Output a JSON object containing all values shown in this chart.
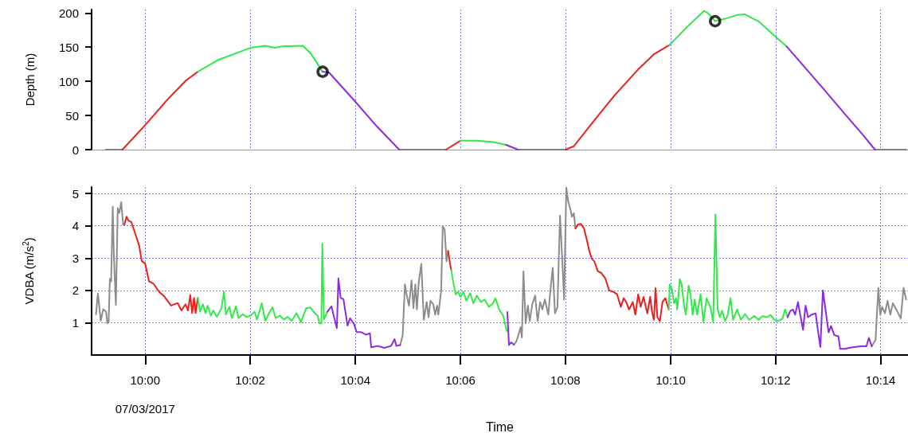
{
  "chart_data": [
    {
      "type": "line",
      "ylabel": "Depth (m)",
      "xlim": [
        9.983,
        10.242
      ],
      "ylim": [
        0,
        205
      ],
      "yticks": [
        0,
        50,
        100,
        150,
        200
      ],
      "xticks": [
        {
          "value": 10,
          "label": null
        },
        {
          "value": 10.0333,
          "label": null
        },
        {
          "value": 10.0667,
          "label": null
        },
        {
          "value": 10.1,
          "label": null
        },
        {
          "value": 10.1333,
          "label": null
        },
        {
          "value": 10.1667,
          "label": null
        },
        {
          "value": 10.2,
          "label": null
        },
        {
          "value": 10.2333,
          "label": null
        }
      ],
      "tick_labels": "y",
      "grid": "x",
      "marker": "none",
      "series": [
        {
          "color": "#808080",
          "x": [
            9.9875,
            9.9928
          ],
          "values": [
            0,
            0
          ]
        },
        {
          "color": "#808080",
          "x": [
            10.0806,
            10.0954
          ],
          "values": [
            0,
            0
          ]
        },
        {
          "color": "#808080",
          "x": [
            10.1183,
            10.1333
          ],
          "values": [
            0,
            0
          ]
        },
        {
          "color": "#808080",
          "x": [
            10.2315,
            10.2415
          ],
          "values": [
            0,
            0
          ]
        },
        {
          "color": "#e8211f",
          "x": [
            9.9928,
            10.0,
            10.007,
            10.0129,
            10.0167
          ],
          "values": [
            0,
            36,
            73,
            101,
            114
          ]
        },
        {
          "color": "#e8211f",
          "x": [
            10.0954,
            10.1
          ],
          "values": [
            0,
            13
          ]
        },
        {
          "color": "#e8211f",
          "x": [
            10.1333,
            10.136,
            10.142,
            10.149,
            10.1563,
            10.1615,
            10.1663
          ],
          "values": [
            0,
            5,
            40,
            80,
            117,
            140,
            153
          ]
        },
        {
          "color": "#33e84a",
          "x": [
            10.0167,
            10.023,
            10.0334,
            10.0381,
            10.041,
            10.0433,
            10.05,
            10.0525,
            10.0563
          ],
          "values": [
            114,
            131,
            149,
            152,
            149,
            151,
            152,
            141,
            114
          ]
        },
        {
          "color": "#33e84a",
          "x": [
            10.1,
            10.1053,
            10.1105,
            10.1145
          ],
          "values": [
            13,
            13,
            11,
            7
          ]
        },
        {
          "color": "#33e84a",
          "x": [
            10.1663,
            10.172,
            10.1773,
            10.1785,
            10.1808,
            10.1843,
            10.1878,
            10.1903,
            10.1948,
            10.2,
            10.2035
          ],
          "values": [
            153,
            180,
            203,
            200,
            188,
            192,
            197,
            198,
            187,
            165,
            151
          ]
        },
        {
          "color": "#8a2be2",
          "x": [
            10.0563,
            10.0583,
            10.0665,
            10.0735,
            10.0806
          ],
          "values": [
            114,
            113,
            71,
            34,
            0
          ]
        },
        {
          "color": "#8a2be2",
          "x": [
            10.1145,
            10.1183
          ],
          "values": [
            7,
            0
          ]
        },
        {
          "color": "#8a2be2",
          "x": [
            10.2035,
            10.2148,
            10.222,
            10.228,
            10.2315
          ],
          "values": [
            151,
            91,
            52,
            20,
            0
          ]
        },
        {
          "type": "scatter",
          "marker": "circle",
          "color": "#000000",
          "x": [
            10.0563,
            10.1808
          ],
          "values": [
            114,
            188
          ]
        }
      ]
    },
    {
      "type": "line",
      "ylabel": "VDBA (m/s$^{2}$)",
      "xlabel": "Time",
      "annotations": [
        "07/03/2017"
      ],
      "xlim": [
        9.983,
        10.242
      ],
      "ylim": [
        0,
        5.2
      ],
      "yticks": [
        1,
        2,
        3,
        4,
        5
      ],
      "xticks": [
        {
          "value": 10,
          "label": "10:00"
        },
        {
          "value": 10.0333,
          "label": "10:02"
        },
        {
          "value": 10.0667,
          "label": "10:04"
        },
        {
          "value": 10.1,
          "label": "10:06"
        },
        {
          "value": 10.1333,
          "label": "10:08"
        },
        {
          "value": 10.1667,
          "label": "10:10"
        },
        {
          "value": 10.2,
          "label": "10:12"
        },
        {
          "value": 10.2333,
          "label": "10:14"
        }
      ],
      "grid": true,
      "marker": "none",
      "series": [
        {
          "color": "#8c8c8c",
          "x": [
            9.9844,
            9.985,
            9.9859,
            9.9867,
            9.9876,
            9.988,
            9.9884,
            9.9888,
            9.9892,
            9.9897,
            9.9901,
            9.9907,
            9.9913,
            9.9918,
            9.9924,
            9.993,
            9.9934
          ],
          "values": [
            1.26,
            1.91,
            1.06,
            1.42,
            1.34,
            0.98,
            1.02,
            2.36,
            2.28,
            4.59,
            2.98,
            1.55,
            4.55,
            4.4,
            4.73,
            4.04,
            4.04
          ]
        },
        {
          "color": "#8c8c8c",
          "x": [
            10.0809,
            10.0817,
            10.0824,
            10.083,
            10.0837,
            10.0845,
            10.0851,
            10.0857,
            10.0862,
            10.0868,
            10.0876,
            10.0884,
            10.0893,
            10.0899,
            10.0905,
            10.0914,
            10.092,
            10.0926,
            10.093,
            10.0939,
            10.0944,
            10.095,
            10.0956,
            10.0961
          ],
          "values": [
            0.31,
            0.62,
            2.19,
            1.84,
            1.53,
            2.31,
            1.45,
            2.19,
            1.41,
            2.27,
            2.82,
            1.09,
            1.64,
            1.17,
            1.68,
            1.57,
            1.25,
            1.53,
            1.25,
            2.0,
            3.99,
            3.88,
            2.9,
            3.22
          ]
        },
        {
          "color": "#8c8c8c",
          "x": [
            10.117,
            10.1178,
            10.1184,
            10.1191,
            10.1195,
            10.12,
            10.1207,
            10.1214,
            10.122,
            10.1228,
            10.1237,
            10.1245,
            10.1253,
            10.126,
            10.1268,
            10.1279,
            10.1285,
            10.1293,
            10.13,
            10.1308,
            10.1316,
            10.1323,
            10.1329,
            10.1336,
            10.1342,
            10.1347,
            10.1354,
            10.136,
            10.1365
          ],
          "values": [
            0.32,
            0.43,
            0.62,
            0.86,
            0.54,
            2.59,
            0.98,
            1.53,
            1.05,
            1.57,
            1.84,
            1.05,
            1.64,
            1.41,
            1.72,
            1.25,
            1.96,
            2.7,
            1.29,
            1.49,
            4.32,
            2.98,
            1.72,
            5.18,
            4.75,
            4.59,
            4.28,
            4.39,
            3.92
          ]
        },
        {
          "color": "#8c8c8c",
          "x": [
            10.2305,
            10.2317,
            10.2326,
            10.2332,
            10.2338,
            10.2347,
            10.2355,
            10.2364,
            10.2372,
            10.2385,
            10.2397,
            10.2406,
            10.2414
          ],
          "values": [
            0.27,
            0.47,
            2.08,
            1.25,
            1.49,
            1.29,
            1.68,
            1.25,
            1.6,
            1.37,
            1.13,
            2.08,
            1.72
          ]
        },
        {
          "color": "#e8211f",
          "x": [
            9.9934,
            9.9941,
            9.9947,
            9.9956,
            9.9968,
            9.9981,
            9.9989,
            10.0,
            10.0012,
            10.0027,
            10.0044,
            10.0061,
            10.0082,
            10.0103,
            10.0115,
            10.0128,
            10.0136,
            10.0143,
            10.0149,
            10.0155,
            10.016,
            10.0167
          ],
          "values": [
            4.04,
            4.28,
            4.16,
            4.12,
            3.77,
            3.38,
            2.91,
            2.83,
            2.28,
            2.2,
            1.96,
            1.81,
            1.53,
            1.61,
            1.38,
            1.57,
            1.38,
            1.86,
            1.3,
            1.77,
            1.3,
            1.77
          ]
        },
        {
          "color": "#e8211f",
          "x": [
            10.0961,
            10.0966,
            10.0971
          ],
          "values": [
            3.22,
            2.9,
            2.63
          ]
        },
        {
          "color": "#e8211f",
          "x": [
            10.1365,
            10.1373,
            10.1382,
            10.1392,
            10.14,
            10.1409,
            10.1417,
            10.1425,
            10.1436,
            10.1446,
            10.1459,
            10.1472,
            10.1484,
            10.1497,
            10.1509,
            10.1518,
            10.1526,
            10.1535,
            10.1547,
            10.1555,
            10.1564,
            10.1572,
            10.1581,
            10.1593,
            10.1602,
            10.1608,
            10.1614,
            10.1619,
            10.1625,
            10.1633,
            10.1641,
            10.165,
            10.1661
          ],
          "values": [
            3.92,
            4.04,
            4.06,
            3.92,
            3.61,
            3.22,
            2.98,
            2.9,
            2.59,
            2.55,
            2.39,
            2.0,
            1.96,
            1.88,
            1.49,
            1.76,
            1.64,
            1.41,
            1.64,
            1.25,
            1.88,
            1.49,
            1.8,
            1.29,
            1.8,
            1.33,
            1.09,
            2.07,
            1.17,
            1.05,
            1.64,
            1.76,
            1.41
          ]
        },
        {
          "color": "#33e84a",
          "x": [
            10.0167,
            10.0174,
            10.0183,
            10.0191,
            10.0198,
            10.0208,
            10.0216,
            10.0227,
            10.0242,
            10.025,
            10.0256,
            10.0267,
            10.0275,
            10.0288,
            10.0296,
            10.0309,
            10.0322,
            10.0334,
            10.0347,
            10.0355,
            10.037,
            10.0381,
            10.0391,
            10.0404,
            10.0414,
            10.0427,
            10.044,
            10.0452,
            10.0465,
            10.048,
            10.0494,
            10.0511,
            10.0524,
            10.0536,
            10.0547,
            10.0553,
            10.0559,
            10.0562,
            10.0567,
            10.0578
          ],
          "values": [
            1.77,
            1.34,
            1.57,
            1.3,
            1.53,
            1.22,
            1.38,
            1.18,
            1.45,
            1.96,
            1.26,
            1.49,
            1.14,
            1.51,
            1.14,
            1.26,
            1.18,
            1.22,
            1.34,
            1.1,
            1.6,
            1.06,
            1.26,
            1.48,
            1.14,
            1.22,
            1.1,
            1.18,
            1.06,
            1.3,
            1.02,
            1.45,
            1.47,
            1.32,
            1.22,
            0.98,
            0.98,
            3.45,
            1.1,
            1.34
          ]
        },
        {
          "color": "#33e84a",
          "x": [
            10.0971,
            10.0977,
            10.0985,
            10.0993,
            10.1,
            10.101,
            10.1019,
            10.1031,
            10.1041,
            10.1052,
            10.1065,
            10.1077,
            10.109,
            10.1102,
            10.1111,
            10.1123,
            10.1136,
            10.1147
          ],
          "values": [
            2.63,
            2.27,
            1.88,
            1.96,
            1.8,
            1.96,
            1.68,
            1.92,
            1.6,
            1.84,
            1.64,
            1.72,
            1.49,
            1.58,
            1.76,
            1.41,
            1.21,
            0.74
          ]
        },
        {
          "color": "#33e84a",
          "x": [
            10.1661,
            10.1664,
            10.1671,
            10.1678,
            10.1684,
            10.1688,
            10.1696,
            10.1702,
            10.1709,
            10.1715,
            10.1724,
            10.173,
            10.1737,
            10.1743,
            10.1751,
            10.1762,
            10.1771,
            10.1781,
            10.1794,
            10.1802,
            10.1809,
            10.1816,
            10.1823,
            10.183,
            10.184,
            10.1848,
            10.1857,
            10.1865,
            10.1878,
            10.189,
            10.1903,
            10.1916,
            10.1933,
            10.1946,
            10.1958,
            10.1971,
            10.1984,
            10.1996,
            10.2009,
            10.2022,
            10.203,
            10.2038
          ],
          "values": [
            1.41,
            2.19,
            2.04,
            1.6,
            1.76,
            1.41,
            2.35,
            2.19,
            1.57,
            1.25,
            2.15,
            1.88,
            1.25,
            1.72,
            1.25,
            1.88,
            1.02,
            1.76,
            1.45,
            1.02,
            4.35,
            1.41,
            1.17,
            1.37,
            1.05,
            1.25,
            1.76,
            1.09,
            1.41,
            1.09,
            1.27,
            1.09,
            1.21,
            1.09,
            1.21,
            1.17,
            1.24,
            1.09,
            1.05,
            1.13,
            1.41,
            1.17
          ]
        },
        {
          "color": "#8a2be2",
          "x": [
            10.0578,
            10.0591,
            10.0599,
            10.0608,
            10.0613,
            10.062,
            10.0629,
            10.0642,
            10.065,
            10.0663,
            10.0671,
            10.0684,
            10.07,
            10.0713,
            10.0717,
            10.0738,
            10.0759,
            10.078,
            10.0791,
            10.0797,
            10.0809
          ],
          "values": [
            1.34,
            1.51,
            1.18,
            0.83,
            2.37,
            1.77,
            1.73,
            0.91,
            1.14,
            0.95,
            0.71,
            0.71,
            0.63,
            0.67,
            0.24,
            0.28,
            0.22,
            0.28,
            0.49,
            0.28,
            0.31
          ]
        },
        {
          "color": "#8a2be2",
          "x": [
            10.1149,
            10.1154,
            10.1161,
            10.117
          ],
          "values": [
            1.33,
            0.31,
            0.39,
            0.32
          ]
        },
        {
          "color": "#8a2be2",
          "x": [
            10.2038,
            10.2047,
            10.2055,
            10.2062,
            10.2071,
            10.2078,
            10.2087,
            10.2095,
            10.2103,
            10.2114,
            10.2127,
            10.2134,
            10.2142,
            10.215,
            10.2161,
            10.2168,
            10.2176,
            10.2186,
            10.2199,
            10.2205,
            10.222,
            10.2237,
            10.2254,
            10.2271,
            10.2288,
            10.2296,
            10.2305
          ],
          "values": [
            1.17,
            1.37,
            1.41,
            1.25,
            1.64,
            1.25,
            0.78,
            1.53,
            1.17,
            1.25,
            1.29,
            0.78,
            0.25,
            2.0,
            1.21,
            0.7,
            0.9,
            0.62,
            0.58,
            0.19,
            0.19,
            0.23,
            0.25,
            0.27,
            0.27,
            0.53,
            0.27
          ]
        }
      ]
    }
  ]
}
